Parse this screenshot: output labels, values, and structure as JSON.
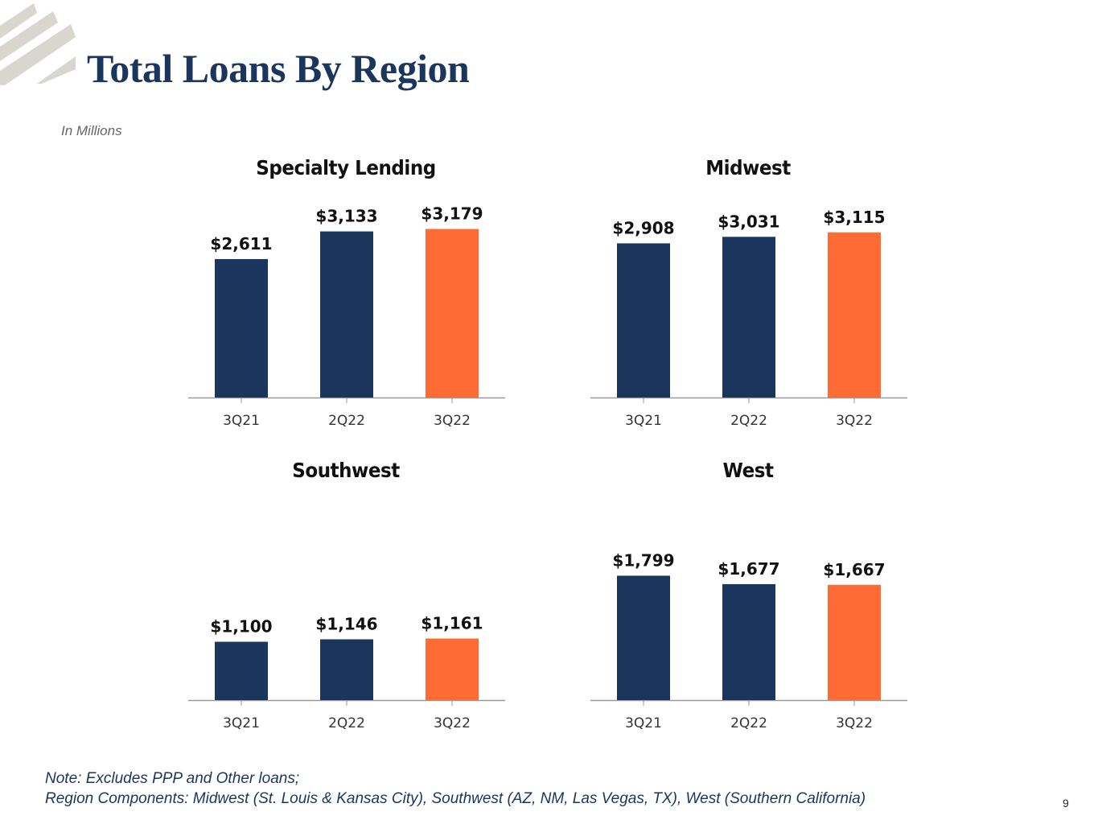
{
  "page": {
    "title": "Total Loans By Region",
    "subtitle": "In Millions",
    "note_lines": [
      "Note: Excludes PPP and Other loans;",
      "Region Components: Midwest (St. Louis & Kansas City), Southwest (AZ, NM, Las Vegas, TX), West (Southern California)"
    ],
    "page_number": "9"
  },
  "colors": {
    "navy": "#1b365d",
    "orange": "#ff6b35",
    "axis": "#999999",
    "tick_label": "#333333",
    "value_label": "#111111",
    "logo": "#d9d6d0"
  },
  "chart_data": [
    {
      "type": "bar",
      "title": "Specialty Lending",
      "categories": [
        "3Q21",
        "2Q22",
        "3Q22"
      ],
      "values": [
        2611,
        3133,
        3179
      ],
      "value_labels": [
        "$2,611",
        "$3,133",
        "$3,179"
      ],
      "bar_colors": [
        "#1b365d",
        "#1b365d",
        "#ff6b35"
      ],
      "xlabel": "",
      "ylabel": "",
      "ylim": [
        0,
        3400
      ],
      "grid": false,
      "legend": "none"
    },
    {
      "type": "bar",
      "title": "Midwest",
      "categories": [
        "3Q21",
        "2Q22",
        "3Q22"
      ],
      "values": [
        2908,
        3031,
        3115
      ],
      "value_labels": [
        "$2,908",
        "$3,031",
        "$3,115"
      ],
      "bar_colors": [
        "#1b365d",
        "#1b365d",
        "#ff6b35"
      ],
      "xlabel": "",
      "ylabel": "",
      "ylim": [
        0,
        3400
      ],
      "grid": false,
      "legend": "none"
    },
    {
      "type": "bar",
      "title": "Southwest",
      "categories": [
        "3Q21",
        "2Q22",
        "3Q22"
      ],
      "values": [
        1100,
        1146,
        1161
      ],
      "value_labels": [
        "$1,100",
        "$1,146",
        "$1,161"
      ],
      "bar_colors": [
        "#1b365d",
        "#1b365d",
        "#ff6b35"
      ],
      "xlabel": "",
      "ylabel": "",
      "ylim": [
        0,
        3400
      ],
      "grid": false,
      "legend": "none"
    },
    {
      "type": "bar",
      "title": "West",
      "categories": [
        "3Q21",
        "2Q22",
        "3Q22"
      ],
      "values": [
        1799,
        1677,
        1667
      ],
      "value_labels": [
        "$1,799",
        "$1,677",
        "$1,667"
      ],
      "bar_colors": [
        "#1b365d",
        "#1b365d",
        "#ff6b35"
      ],
      "xlabel": "",
      "ylabel": "",
      "ylim": [
        0,
        2200
      ],
      "grid": false,
      "legend": "none"
    }
  ]
}
